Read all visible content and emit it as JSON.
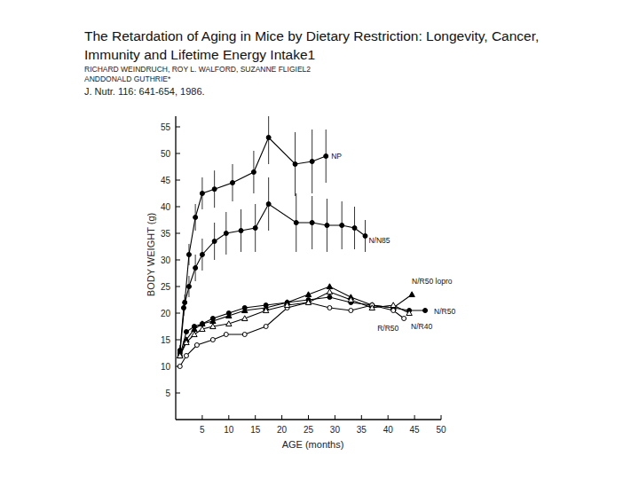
{
  "chart_data": {
    "type": "line",
    "title": "The Retardation of Aging in Mice by Dietary Restriction: Longevity, Cancer, Immunity and Lifetime Energy Intake1",
    "authors": "RICHARD WEINDRUCH, ROY L. WALFORD, SUZANNE FLIGIEL2 ANDDONALD GUTHRIE*",
    "citation": "J. Nutr. 116: 641-654, 1986.",
    "x_label": "AGE (months)",
    "y_label": "BODY WEIGHT (g)",
    "xlim": [
      0,
      50
    ],
    "xticks": [
      5,
      10,
      15,
      20,
      25,
      30,
      35,
      40,
      45,
      50
    ],
    "ylim": [
      0,
      57
    ],
    "yticks": [
      5,
      10,
      15,
      20,
      25,
      30,
      35,
      40,
      45,
      50,
      55
    ],
    "grid": false,
    "series": [
      {
        "name": "NP",
        "color": "#000000",
        "marker": "circle",
        "line_style": "solid",
        "x": [
          0.8,
          1.7,
          2.5,
          3.7,
          5,
          7.3,
          10.7,
          14.7,
          17.5,
          22.5,
          25.7,
          28.3
        ],
        "values": [
          12.5,
          22,
          31,
          38,
          42.5,
          43.3,
          44.5,
          46.5,
          53,
          48,
          48.5,
          49.5
        ],
        "errors": [
          1,
          1.5,
          2,
          2.5,
          3,
          3.5,
          3.5,
          4,
          5,
          6,
          6,
          5
        ]
      },
      {
        "name": "N/N85",
        "color": "#000000",
        "marker": "circle",
        "line_style": "solid",
        "x": [
          0.8,
          1.5,
          2.5,
          3.7,
          5,
          7.3,
          9.5,
          12.3,
          15,
          17.5,
          22.7,
          25.7,
          28.5,
          31.3,
          33.7,
          35.7
        ],
        "values": [
          13,
          21,
          25,
          28.5,
          31,
          33.5,
          35,
          35.5,
          36,
          40.5,
          37,
          37,
          36.5,
          36.5,
          36,
          34.5
        ],
        "errors": [
          1,
          1.5,
          2,
          2.5,
          3,
          3.5,
          4,
          4,
          4.5,
          5,
          5.5,
          5,
          5,
          4.5,
          4,
          3
        ]
      },
      {
        "name": "N/R50 lopro",
        "color": "#000000",
        "marker": "triangle",
        "line_style": "solid",
        "x": [
          0.8,
          2,
          3.5,
          5,
          7,
          10,
          13,
          17,
          21,
          25,
          29,
          33,
          37,
          41,
          44.5
        ],
        "values": [
          12,
          15,
          17,
          18,
          18.5,
          19.5,
          20.5,
          21,
          22,
          23.5,
          25,
          23,
          21.5,
          21,
          23.5
        ]
      },
      {
        "name": "N/R50",
        "color": "#000000",
        "marker": "circle",
        "line_style": "solid",
        "x": [
          0.8,
          2,
          3.5,
          5,
          7,
          10,
          13,
          17,
          21,
          25,
          29,
          33,
          37,
          41,
          44,
          47
        ],
        "values": [
          12,
          16.5,
          17.5,
          18,
          19,
          20,
          21,
          21.5,
          22,
          22.5,
          23,
          22,
          21.5,
          21,
          20.5,
          20.5
        ]
      },
      {
        "name": "R/R50",
        "color": "#000000",
        "marker": "open_circle",
        "line_style": "solid",
        "x": [
          0.8,
          2,
          4,
          7,
          9.5,
          13,
          17,
          21,
          25,
          29,
          33,
          37,
          41,
          43
        ],
        "values": [
          10,
          12,
          14,
          15,
          16,
          16,
          17.5,
          21,
          22,
          21,
          20.5,
          21.5,
          20.5,
          19
        ]
      },
      {
        "name": "N/R40",
        "color": "#000000",
        "marker": "open_triangle",
        "line_style": "solid",
        "x": [
          0.8,
          2,
          3.5,
          5,
          7,
          10,
          13,
          17,
          21,
          25,
          29,
          33,
          37,
          41,
          44
        ],
        "values": [
          12,
          14.5,
          16,
          17,
          17.5,
          18,
          19,
          20.5,
          21.5,
          22,
          24,
          22.5,
          21,
          21.5,
          20
        ]
      }
    ]
  }
}
